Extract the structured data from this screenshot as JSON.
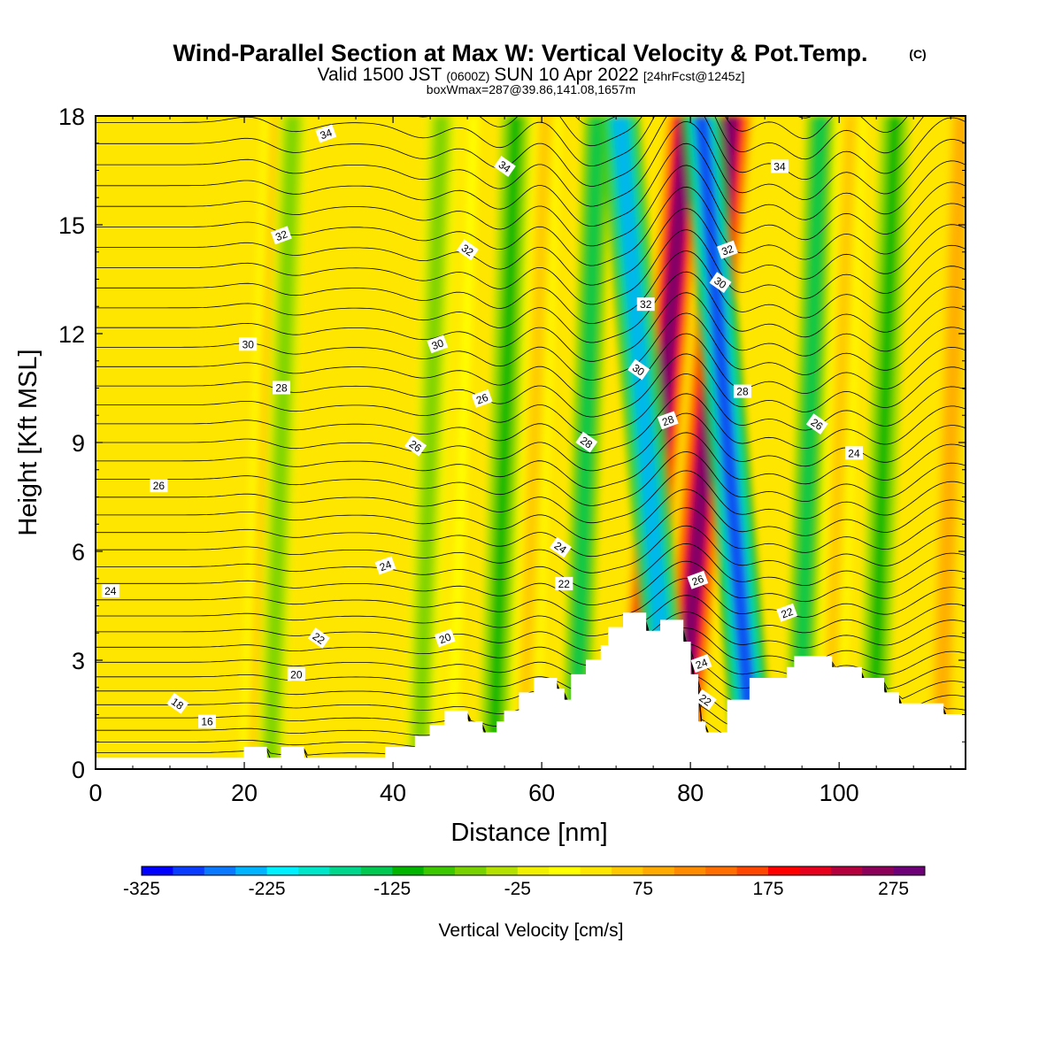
{
  "chart_data": {
    "type": "heatmap",
    "title": "Wind-Parallel Section at Max W: Vertical Velocity & Pot.Temp.",
    "title_tag": "(C)",
    "subtitle_valid": "Valid 1500 JST",
    "subtitle_utc": "(0600Z)",
    "subtitle_date": "SUN 10 Apr 2022",
    "subtitle_fcst": "[24hrFcst@1245z]",
    "subtitle_box": "boxWmax=287@39.86,141.08,1657m",
    "xlabel": "Distance [nm]",
    "ylabel": "Height [Kft MSL]",
    "xlim": [
      0,
      117
    ],
    "ylim": [
      0,
      18
    ],
    "x_ticks": [
      "0",
      "20",
      "40",
      "60",
      "80",
      "100"
    ],
    "y_ticks": [
      "0",
      "3",
      "6",
      "9",
      "12",
      "15",
      "18"
    ],
    "colorbar": {
      "title": "Vertical Velocity [cm/s]",
      "tick_labels": [
        "-325",
        "-225",
        "-125",
        "-25",
        "75",
        "175",
        "275"
      ],
      "tick_values": [
        -325,
        -225,
        -125,
        -25,
        75,
        175,
        275
      ],
      "range": [
        -325,
        300
      ],
      "colors": [
        "#0000ff",
        "#0a3cff",
        "#0a78ff",
        "#00b4ff",
        "#00f0ff",
        "#00e6c8",
        "#00d78c",
        "#00c850",
        "#00b400",
        "#3cc800",
        "#78d200",
        "#b4e100",
        "#f0f000",
        "#ffff00",
        "#ffe600",
        "#ffc800",
        "#ffaa00",
        "#ff8c00",
        "#ff6e00",
        "#ff4600",
        "#ff0000",
        "#e6001e",
        "#b4003c",
        "#8c005a",
        "#6e0078"
      ]
    },
    "terrain_profile": {
      "x": [
        0,
        20,
        20,
        23,
        23,
        25,
        25,
        28,
        28,
        39,
        39,
        43,
        43,
        45,
        45,
        47,
        47,
        50,
        50,
        52,
        52,
        54,
        54,
        55,
        55,
        57,
        57,
        59,
        59,
        62,
        62,
        63,
        63,
        64,
        64,
        66,
        66,
        68,
        68,
        69,
        69,
        71,
        71,
        74,
        74,
        76,
        76,
        79,
        79,
        80,
        80,
        81,
        81,
        82,
        82,
        85,
        85,
        88,
        88,
        93,
        93,
        94,
        94,
        99,
        99,
        103,
        103,
        106,
        106,
        108,
        108,
        114,
        114,
        117
      ],
      "y": [
        0.3,
        0.3,
        0.6,
        0.6,
        0.3,
        0.3,
        0.6,
        0.6,
        0.3,
        0.3,
        0.6,
        0.6,
        0.9,
        0.9,
        1.2,
        1.2,
        1.6,
        1.6,
        1.3,
        1.3,
        1.0,
        1.0,
        1.3,
        1.3,
        1.6,
        1.6,
        2.1,
        2.1,
        2.5,
        2.5,
        2.2,
        2.2,
        1.9,
        1.9,
        2.6,
        2.6,
        3.0,
        3.0,
        3.4,
        3.4,
        3.9,
        3.9,
        4.3,
        4.3,
        3.8,
        3.8,
        4.1,
        4.1,
        3.5,
        3.5,
        2.6,
        2.6,
        1.3,
        1.3,
        1.0,
        1.0,
        1.9,
        1.9,
        2.5,
        2.5,
        2.8,
        2.8,
        3.1,
        3.1,
        2.8,
        2.8,
        2.5,
        2.5,
        2.1,
        2.1,
        1.8,
        1.8,
        1.5,
        1.5
      ]
    },
    "updraft_bands": [
      {
        "x": 23,
        "w": 60
      },
      {
        "x": 48,
        "w": 35
      },
      {
        "x": 59,
        "w": 60
      },
      {
        "x": 76,
        "w": 280
      },
      {
        "x": 82,
        "w": 287
      },
      {
        "x": 100,
        "w": 50
      },
      {
        "x": 115,
        "w": 90
      }
    ],
    "downdraft_bands": [
      {
        "x": 25,
        "w": -70
      },
      {
        "x": 45,
        "w": -70
      },
      {
        "x": 55,
        "w": -110
      },
      {
        "x": 66,
        "w": -140
      },
      {
        "x": 74,
        "w": -250
      },
      {
        "x": 85,
        "w": -300
      },
      {
        "x": 96,
        "w": -140
      },
      {
        "x": 106,
        "w": -110
      }
    ],
    "contour_labels": [
      {
        "v": "34",
        "x": 31,
        "y": 17.5
      },
      {
        "v": "34",
        "x": 55,
        "y": 16.6
      },
      {
        "v": "34",
        "x": 92,
        "y": 16.6
      },
      {
        "v": "32",
        "x": 25,
        "y": 14.7
      },
      {
        "v": "32",
        "x": 50,
        "y": 14.3
      },
      {
        "v": "32",
        "x": 74,
        "y": 12.8
      },
      {
        "v": "32",
        "x": 85,
        "y": 14.3
      },
      {
        "v": "30",
        "x": 84,
        "y": 13.4
      },
      {
        "v": "30",
        "x": 20.5,
        "y": 11.7
      },
      {
        "v": "30",
        "x": 46,
        "y": 11.7
      },
      {
        "v": "30",
        "x": 73,
        "y": 11.0
      },
      {
        "v": "28",
        "x": 25,
        "y": 10.5
      },
      {
        "v": "28",
        "x": 77,
        "y": 9.6
      },
      {
        "v": "28",
        "x": 66,
        "y": 9.0
      },
      {
        "v": "28",
        "x": 87,
        "y": 10.4
      },
      {
        "v": "26",
        "x": 52,
        "y": 10.2
      },
      {
        "v": "26",
        "x": 43,
        "y": 8.9
      },
      {
        "v": "26",
        "x": 8.5,
        "y": 7.8
      },
      {
        "v": "26",
        "x": 81,
        "y": 5.2
      },
      {
        "v": "26",
        "x": 97,
        "y": 9.5
      },
      {
        "v": "24",
        "x": 2,
        "y": 4.9
      },
      {
        "v": "24",
        "x": 39,
        "y": 5.6
      },
      {
        "v": "24",
        "x": 62.5,
        "y": 6.1
      },
      {
        "v": "24",
        "x": 102,
        "y": 8.7
      },
      {
        "v": "24",
        "x": 81.5,
        "y": 2.9
      },
      {
        "v": "22",
        "x": 30,
        "y": 3.6
      },
      {
        "v": "22",
        "x": 63,
        "y": 5.1
      },
      {
        "v": "22",
        "x": 93,
        "y": 4.3
      },
      {
        "v": "22",
        "x": 82,
        "y": 1.9
      },
      {
        "v": "20",
        "x": 27,
        "y": 2.6
      },
      {
        "v": "20",
        "x": 47,
        "y": 3.6
      },
      {
        "v": "18",
        "x": 11,
        "y": 1.8
      },
      {
        "v": "16",
        "x": 15,
        "y": 1.3
      }
    ]
  }
}
